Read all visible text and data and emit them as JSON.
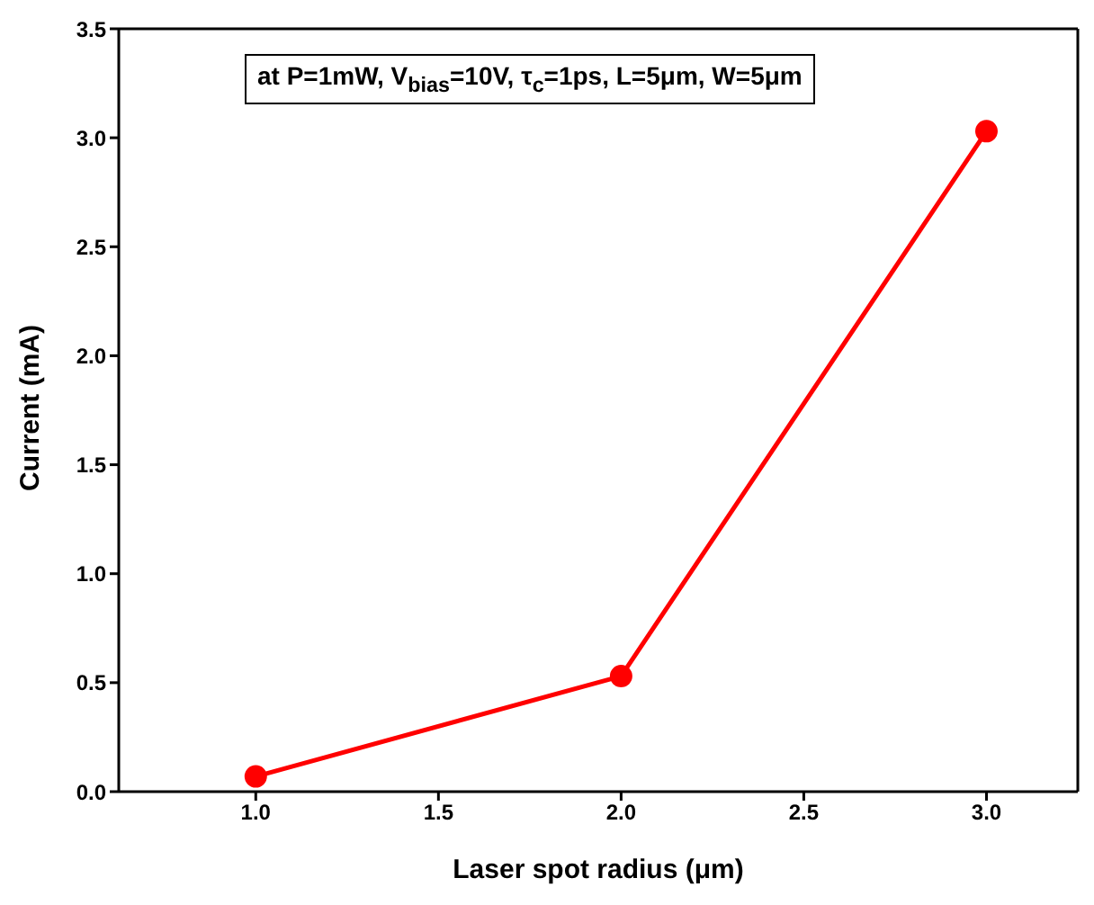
{
  "chart_data": {
    "type": "line",
    "xlabel": "Laser spot radius (μm)",
    "ylabel": "Current (mA)",
    "annotations": [
      "at P=1mW, V$_{bias}$=10V, τ$_{c}$=1ps, L=5μm, W=5μm"
    ],
    "x": [
      1.0,
      2.0,
      3.0
    ],
    "series": [
      {
        "color": "#ff0000",
        "values": [
          0.07,
          0.53,
          3.03
        ]
      }
    ],
    "xlim": [
      0.625,
      3.25
    ],
    "xticks": [
      {
        "value": 1,
        "label": "1.0"
      },
      {
        "value": 1.5,
        "label": "1.5"
      },
      {
        "value": 2,
        "label": "2.0"
      },
      {
        "value": 2.5,
        "label": "2.5"
      },
      {
        "value": 3,
        "label": "3.0"
      }
    ],
    "ylim": [
      0,
      3.5
    ],
    "yticks": [
      {
        "value": 0,
        "label": "0.0"
      },
      {
        "value": 0.5,
        "label": "0.5"
      },
      {
        "value": 1,
        "label": "1.0"
      },
      {
        "value": 1.5,
        "label": "1.5"
      },
      {
        "value": 2,
        "label": "2.0"
      },
      {
        "value": 2.5,
        "label": "2.5"
      },
      {
        "value": 3,
        "label": "3.0"
      },
      {
        "value": 3.5,
        "label": "3.5"
      }
    ],
    "marker": "circle",
    "line_style": "solid",
    "grid": false,
    "legend": false
  }
}
